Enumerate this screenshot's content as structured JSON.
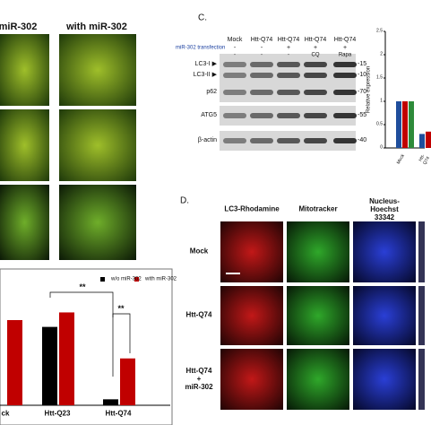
{
  "panel_a": {
    "headers": [
      "miR-302",
      "with miR-302"
    ]
  },
  "panel_b": {
    "chart_data": {
      "type": "bar",
      "categories": [
        "ck",
        "Htt-Q23",
        "Htt-Q74"
      ],
      "series": [
        {
          "name": "w/o miR-302",
          "color": "#000000",
          "values": [
            null,
            0.92,
            0.07
          ]
        },
        {
          "name": "with miR-302",
          "color": "#c00000",
          "values": [
            1.0,
            1.09,
            0.55
          ]
        }
      ],
      "annotations": [
        "**",
        "**"
      ]
    }
  },
  "panel_c": {
    "label": "C.",
    "lanes": [
      "Mock",
      "Htt-Q74",
      "Htt-Q74",
      "Htt-Q74",
      "Htt-Q74"
    ],
    "transfection_label": "miR-302 transfection",
    "transfection": [
      "-",
      "-",
      "+",
      "+",
      "+"
    ],
    "treatments": [
      "-",
      "-",
      "-",
      "CQ",
      "Rapa"
    ],
    "rows": [
      "LC3-I ▶",
      "LC3-II ▶",
      "p62",
      "ATG5",
      "β-actin"
    ],
    "markers": [
      "-15",
      "-10",
      "-70",
      "-55",
      "-40"
    ]
  },
  "panel_c_chart": {
    "chart_data": {
      "type": "bar",
      "y_label": "Relative expression",
      "ylim": [
        0,
        2.5
      ],
      "yticks": [
        0,
        0.5,
        1,
        1.5,
        2,
        2.5
      ],
      "categories": [
        "Mock",
        "Htt-Q74"
      ],
      "series": [
        {
          "color": "#1f4e9c",
          "values": [
            1.0,
            0.3
          ]
        },
        {
          "color": "#c00000",
          "values": [
            1.0,
            0.35
          ]
        },
        {
          "color": "#2e8b3a",
          "values": [
            1.0,
            null
          ]
        }
      ]
    }
  },
  "panel_d": {
    "label": "D.",
    "columns": [
      "LC3-Rhodamine",
      "Mitotracker",
      "Nucleus-\nHoechst 33342"
    ],
    "rows": [
      "Mock",
      "Htt-Q74",
      "Htt-Q74\n+\nmiR-302"
    ]
  }
}
